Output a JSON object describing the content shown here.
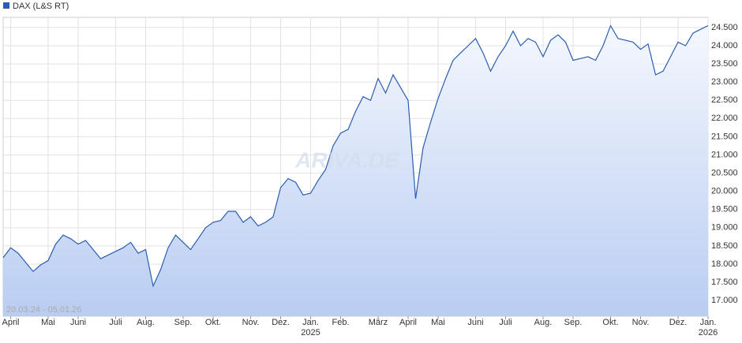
{
  "chart_data": {
    "type": "line",
    "date_range": "20.03.24 - 05.01.26",
    "watermark": "ARIVA.DE",
    "categories": [
      null,
      "April",
      null,
      null,
      null,
      null,
      "Mai",
      null,
      null,
      null,
      "Juni",
      null,
      null,
      null,
      null,
      "Juli",
      null,
      null,
      null,
      "Aug.",
      null,
      null,
      null,
      null,
      "Sep.",
      null,
      null,
      null,
      "Okt.",
      null,
      null,
      null,
      null,
      "Nov.",
      null,
      null,
      null,
      "Dez.",
      null,
      null,
      null,
      "Jan.\n2025",
      null,
      null,
      null,
      "Feb.",
      null,
      null,
      null,
      null,
      "März",
      null,
      null,
      null,
      "April",
      null,
      null,
      null,
      "Mai",
      null,
      null,
      null,
      null,
      "Juni",
      null,
      null,
      null,
      "Juli",
      null,
      null,
      null,
      null,
      "Aug.",
      null,
      null,
      null,
      "Sep.",
      null,
      null,
      null,
      null,
      "Okt.",
      null,
      null,
      null,
      "Nov.",
      null,
      null,
      null,
      null,
      "Dez.",
      null,
      null,
      null,
      "Jan.\n2026"
    ],
    "series": [
      {
        "name": "DAX (L&S RT)",
        "color": "#2a5db0",
        "values": [
          18180,
          18450,
          18300,
          18050,
          17800,
          17980,
          18100,
          18550,
          18800,
          18700,
          18550,
          18650,
          18400,
          18150,
          18250,
          18350,
          18450,
          18600,
          18300,
          18400,
          17400,
          17850,
          18450,
          18800,
          18600,
          18400,
          18700,
          19000,
          19150,
          19200,
          19450,
          19450,
          19150,
          19300,
          19050,
          19150,
          19300,
          20100,
          20350,
          20250,
          19900,
          19950,
          20300,
          20600,
          21250,
          21600,
          21700,
          22200,
          22600,
          22500,
          23100,
          22700,
          23200,
          22850,
          22500,
          19800,
          21200,
          21900,
          22550,
          23100,
          23600,
          23800,
          24000,
          24200,
          23800,
          23300,
          23700,
          24000,
          24400,
          24000,
          24200,
          24100,
          23700,
          24150,
          24300,
          24100,
          23600,
          23650,
          23700,
          23600,
          24000,
          24550,
          24200,
          24150,
          24100,
          23900,
          24050,
          23200,
          23300,
          23700,
          24100,
          24000,
          24350,
          24450,
          24550
        ]
      }
    ],
    "ylim": [
      16570,
      24780
    ],
    "yticks": [
      {
        "value": 17000,
        "label": "17.000"
      },
      {
        "value": 17500,
        "label": "17.500"
      },
      {
        "value": 18000,
        "label": "18.000"
      },
      {
        "value": 18500,
        "label": "18.500"
      },
      {
        "value": 19000,
        "label": "19.000"
      },
      {
        "value": 19500,
        "label": "19.500"
      },
      {
        "value": 20000,
        "label": "20.000"
      },
      {
        "value": 20500,
        "label": "20.500"
      },
      {
        "value": 21000,
        "label": "21.000"
      },
      {
        "value": 21500,
        "label": "21.500"
      },
      {
        "value": 22000,
        "label": "22.000"
      },
      {
        "value": 22500,
        "label": "22.500"
      },
      {
        "value": 23000,
        "label": "23.000"
      },
      {
        "value": 23500,
        "label": "23.500"
      },
      {
        "value": 24000,
        "label": "24.000"
      },
      {
        "value": 24500,
        "label": "24.500"
      }
    ],
    "grid": true
  }
}
